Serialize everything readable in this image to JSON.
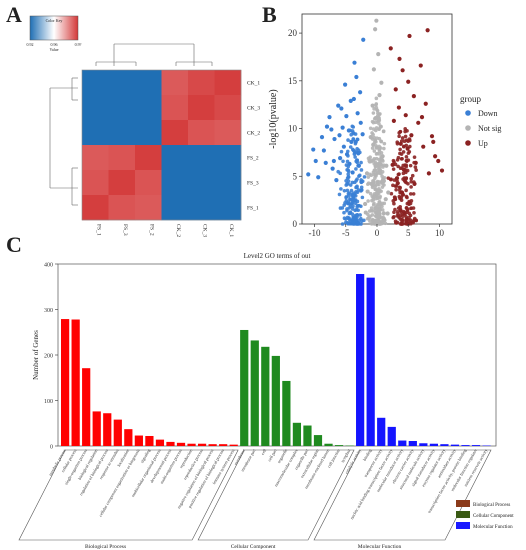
{
  "figure": {
    "panel_labels": [
      "A",
      "B",
      "C"
    ]
  },
  "chart_data": [
    {
      "panel": "A",
      "type": "heatmap",
      "color_key": {
        "title": "Color Key",
        "ticks": [
          "0.92",
          "0.96",
          "0.9?"
        ],
        "label": "Value",
        "low_color": "#1f6fb4",
        "mid_color": "#ffffff",
        "high_color": "#d33838"
      },
      "rows": [
        "CK_1",
        "CK_3",
        "CK_2",
        "FS_2",
        "FS_3",
        "FS_1"
      ],
      "cols": [
        "FS_1",
        "FS_3",
        "FS_2",
        "CK_2",
        "CK_3",
        "CK_1"
      ],
      "values": [
        [
          0.9,
          0.9,
          0.9,
          0.97,
          0.985,
          0.995
        ],
        [
          0.9,
          0.9,
          0.9,
          0.975,
          0.995,
          0.985
        ],
        [
          0.9,
          0.9,
          0.9,
          0.995,
          0.975,
          0.97
        ],
        [
          0.97,
          0.975,
          0.995,
          0.9,
          0.9,
          0.9
        ],
        [
          0.975,
          0.995,
          0.975,
          0.9,
          0.9,
          0.9
        ],
        [
          0.995,
          0.975,
          0.97,
          0.9,
          0.9,
          0.9
        ]
      ]
    },
    {
      "panel": "B",
      "type": "scatter",
      "xlabel": "log(Fold Change)",
      "ylabel": "-log10(pvalue)",
      "xlim": [
        -12,
        12
      ],
      "ylim": [
        0,
        22
      ],
      "xticks": [
        -10,
        -5,
        0,
        5,
        10
      ],
      "yticks": [
        0,
        5,
        10,
        15,
        20
      ],
      "legend": {
        "title": "group",
        "placement": "right",
        "entries": [
          {
            "name": "Down",
            "color": "#3a7fd5"
          },
          {
            "name": "Not sig",
            "color": "#b4b4b4"
          },
          {
            "name": "Up",
            "color": "#8b2222"
          }
        ]
      },
      "series": [
        {
          "name": "Down",
          "color": "#3a7fd5",
          "points": [
            [
              -11,
              5.2
            ],
            [
              -10.2,
              7.8
            ],
            [
              -9.4,
              4.9
            ],
            [
              -8.8,
              9.1
            ],
            [
              -8.2,
              6.4
            ],
            [
              -7.6,
              11.2
            ],
            [
              -7.1,
              5.8
            ],
            [
              -6.8,
              8.9
            ],
            [
              -6.2,
              12.4
            ],
            [
              -5.9,
              6.9
            ],
            [
              -5.5,
              10.1
            ],
            [
              -5.1,
              14.6
            ],
            [
              -4.8,
              7.3
            ],
            [
              -4.5,
              9.8
            ],
            [
              -4.2,
              12.9
            ],
            [
              -3.9,
              5.4
            ],
            [
              -3.6,
              16.9
            ],
            [
              -3.4,
              8.6
            ],
            [
              -3.1,
              11.6
            ],
            [
              -2.9,
              6.1
            ],
            [
              -2.7,
              13.8
            ],
            [
              -2.5,
              4.4
            ],
            [
              -2.3,
              9.4
            ],
            [
              -2.2,
              19.3
            ],
            [
              -9.8,
              6.6
            ],
            [
              -8.5,
              7.7
            ],
            [
              -7.3,
              9.9
            ],
            [
              -6.5,
              4.6
            ],
            [
              -5.7,
              12.1
            ],
            [
              -4.4,
              6.3
            ],
            [
              -3.3,
              15.4
            ],
            [
              -2.6,
              10.6
            ],
            [
              -6.9,
              6.6
            ],
            [
              -5.3,
              8.1
            ],
            [
              -4.9,
              11.3
            ],
            [
              -4.1,
              8.6
            ],
            [
              -3.7,
              13.1
            ],
            [
              -3.0,
              7.4
            ],
            [
              -8.0,
              10.2
            ],
            [
              -6.0,
              9.3
            ]
          ]
        },
        {
          "name": "Not sig",
          "color": "#b4b4b4",
          "points": [
            [
              -1.8,
              1.2
            ],
            [
              -1.5,
              3.4
            ],
            [
              -1.2,
              6.6
            ],
            [
              -1.0,
              9.1
            ],
            [
              -0.7,
              12.4
            ],
            [
              -0.5,
              16.2
            ],
            [
              -0.3,
              20.4
            ],
            [
              -0.1,
              21.3
            ],
            [
              0.2,
              17.8
            ],
            [
              0.4,
              13.5
            ],
            [
              0.6,
              10.2
            ],
            [
              0.9,
              7.1
            ],
            [
              1.1,
              4.5
            ],
            [
              1.4,
              2.6
            ],
            [
              1.7,
              1.1
            ],
            [
              -1.3,
              0.6
            ],
            [
              0.0,
              3.2
            ],
            [
              0.5,
              5.6
            ],
            [
              -0.6,
              8.3
            ],
            [
              1.2,
              0.4
            ],
            [
              -1.9,
              2.1
            ],
            [
              1.8,
              3.3
            ],
            [
              0.3,
              0.8
            ],
            [
              -0.2,
              11.1
            ],
            [
              0.7,
              14.8
            ],
            [
              -0.9,
              4.2
            ],
            [
              1.5,
              6.1
            ],
            [
              -1.6,
              5.3
            ]
          ]
        },
        {
          "name": "Up",
          "color": "#8b2222",
          "points": [
            [
              2.2,
              18.4
            ],
            [
              2.5,
              6.2
            ],
            [
              2.7,
              10.8
            ],
            [
              3.0,
              14.1
            ],
            [
              3.2,
              4.8
            ],
            [
              3.5,
              12.2
            ],
            [
              3.8,
              8.4
            ],
            [
              4.1,
              16.1
            ],
            [
              4.3,
              5.7
            ],
            [
              4.6,
              11.4
            ],
            [
              4.9,
              7.9
            ],
            [
              5.2,
              19.7
            ],
            [
              5.5,
              9.3
            ],
            [
              5.9,
              13.4
            ],
            [
              6.2,
              6.4
            ],
            [
              6.6,
              10.6
            ],
            [
              7.0,
              16.6
            ],
            [
              7.4,
              8.1
            ],
            [
              7.8,
              12.6
            ],
            [
              8.3,
              5.3
            ],
            [
              8.8,
              9.2
            ],
            [
              9.3,
              7.1
            ],
            [
              9.8,
              6.6
            ],
            [
              10.4,
              5.6
            ],
            [
              8.1,
              20.3
            ],
            [
              4.0,
              3.3
            ],
            [
              2.9,
              2.6
            ],
            [
              6.0,
              4.2
            ],
            [
              5.0,
              14.9
            ],
            [
              3.6,
              17.3
            ],
            [
              7.2,
              11.2
            ],
            [
              9.0,
              8.6
            ]
          ]
        }
      ]
    },
    {
      "panel": "C",
      "type": "bar",
      "title": "Level2 GO terms of out",
      "ylabel": "Number of Genes",
      "ylim": [
        0,
        400
      ],
      "yticks": [
        0,
        100,
        200,
        300,
        400
      ],
      "legend": {
        "placement": "bottom-right",
        "entries": [
          {
            "name": "Biological Process",
            "color": "#8b3a1a"
          },
          {
            "name": "Cellular Component",
            "color": "#3a5a14"
          },
          {
            "name": "Molecular Function",
            "color": "#1a1aff"
          }
        ]
      },
      "series": [
        {
          "name": "Biological Process",
          "color": "#ff0000",
          "categories": [
            "metabolic process",
            "cellular process",
            "single-organism process",
            "biological regulation",
            "regulation of biological process",
            "response to stimulus",
            "localization",
            "cellular component organization or biogenesis",
            "signaling",
            "multicellular organismal process",
            "developmental process",
            "multi-organism process",
            "reproduction",
            "reproductive process",
            "negative regulation of biological process",
            "positive regulation of biological process",
            "immune system process"
          ],
          "values": [
            279,
            278,
            171,
            76,
            72,
            58,
            37,
            23,
            22,
            14,
            9,
            7,
            5,
            5,
            4,
            4,
            3
          ]
        },
        {
          "name": "Cellular Component",
          "color": "#1f8a1f",
          "categories": [
            "membrane",
            "membrane part",
            "cell",
            "cell part",
            "organelle",
            "macromolecular complex",
            "organelle part",
            "extracellular region",
            "membrane-enclosed lumen",
            "cell junction",
            "symplast"
          ],
          "values": [
            255,
            232,
            218,
            198,
            143,
            51,
            45,
            24,
            5,
            2,
            1
          ]
        },
        {
          "name": "Molecular Function",
          "color": "#1414ff",
          "categories": [
            "catalytic activity",
            "binding",
            "transporter activity",
            "nucleic acid binding transcription factor activity",
            "molecular transducer activity",
            "electron carrier activity",
            "structural molecule activity",
            "signal transducer activity",
            "enzyme regulator activity",
            "antioxidant activity",
            "transcription factor activity, protein binding",
            "molecular function regulator",
            "nutrient reservoir activity"
          ],
          "values": [
            378,
            370,
            62,
            42,
            12,
            11,
            6,
            5,
            4,
            3,
            2,
            2,
            1
          ]
        }
      ],
      "group_labels": [
        "Biological Process",
        "Cellular Component",
        "Molecular Function"
      ]
    }
  ]
}
